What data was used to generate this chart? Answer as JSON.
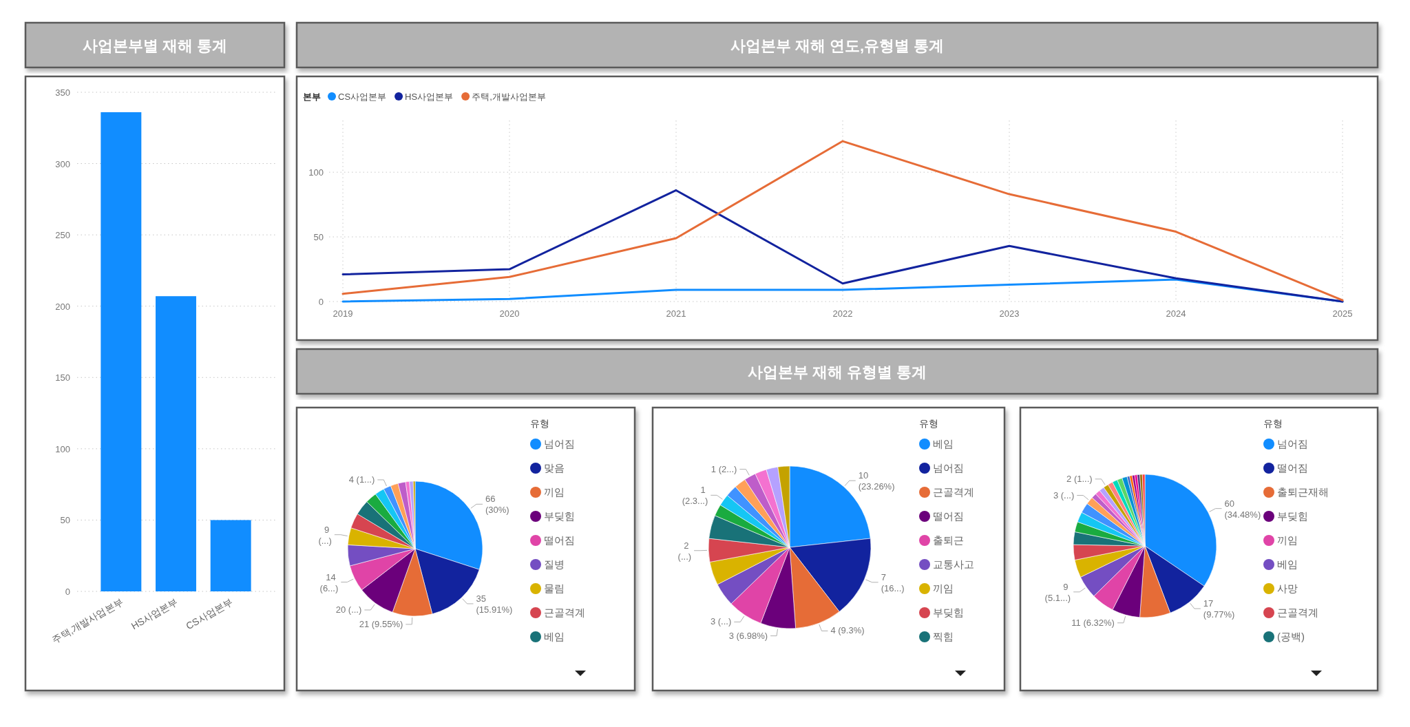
{
  "chart_data": [
    {
      "type": "bar",
      "title": "사업본부별 재해 통계",
      "categories": [
        "주택,개발사업본부",
        "HS사업본부",
        "CS사업본부"
      ],
      "values": [
        336,
        207,
        50
      ],
      "color": "#118dff",
      "ylim": [
        0,
        350
      ],
      "yticks": [
        0,
        50,
        100,
        150,
        200,
        250,
        300,
        350
      ],
      "grid": "y"
    },
    {
      "type": "line",
      "title": "사업본부 재해 연도,유형별 통계",
      "x": [
        2019,
        2020,
        2021,
        2022,
        2023,
        2024,
        2025
      ],
      "series": [
        {
          "name": "CS사업본부",
          "color": "#118dff",
          "values": [
            0,
            2,
            9,
            9,
            13,
            17,
            0
          ]
        },
        {
          "name": "HS사업본부",
          "color": "#12239e",
          "values": [
            21,
            25,
            86,
            14,
            43,
            18,
            0
          ]
        },
        {
          "name": "주택,개발사업본부",
          "color": "#e66c37",
          "values": [
            6,
            19,
            49,
            124,
            83,
            54,
            1
          ]
        }
      ],
      "legend_title": "본부",
      "legend": "top left",
      "xlim": [
        2019,
        2025
      ],
      "xticks": [
        2019,
        2020,
        2021,
        2022,
        2023,
        2024,
        2025
      ],
      "ylim": [
        0,
        140
      ],
      "yticks": [
        0,
        50,
        100
      ],
      "grid": true
    },
    {
      "type": "other",
      "title": "사업본부 재해 유형별 통계"
    },
    {
      "type": "pie",
      "legend_title": "유형",
      "legend": "right",
      "categories": [
        "넘어짐",
        "맞음",
        "끼임",
        "부딪힘",
        "떨어짐",
        "질병",
        "물림",
        "근골격계",
        "베임",
        null,
        null,
        null,
        null,
        null,
        null,
        null,
        null
      ],
      "values": [
        66,
        35,
        21,
        20,
        14,
        11,
        9,
        8,
        8,
        6,
        5,
        4,
        4,
        4,
        2,
        2,
        1
      ],
      "colors": [
        "#118dff",
        "#12239e",
        "#e66c37",
        "#6b007b",
        "#e044a7",
        "#744ec2",
        "#d9b300",
        "#d64550",
        "#197278",
        "#1aab40",
        "#15c6f4",
        "#4092ff",
        "#ffa058",
        "#be5dc9",
        "#f472d0",
        "#b5a1ff",
        "#c4a200"
      ],
      "value_labels": [
        "66 (30%)",
        "35 (15.91%)",
        "21 (9.55%)",
        "20 (...)",
        "14 (6...)",
        null,
        "9 (...)",
        null,
        null,
        null,
        null,
        "4 (1...)",
        null,
        null,
        null,
        null,
        null
      ]
    },
    {
      "type": "pie",
      "legend_title": "유형",
      "legend": "right",
      "categories": [
        "베임",
        "넘어짐",
        "근골격계",
        "떨어짐",
        "출퇴근",
        "교통사고",
        "끼임",
        "부딪힘",
        "찍힘",
        null,
        null,
        null,
        null,
        null,
        null,
        null,
        null
      ],
      "values": [
        10,
        7,
        4,
        3,
        3,
        2,
        2,
        2,
        2,
        1,
        1,
        1,
        1,
        1,
        1,
        1,
        1
      ],
      "colors": [
        "#118dff",
        "#12239e",
        "#e66c37",
        "#6b007b",
        "#e044a7",
        "#744ec2",
        "#d9b300",
        "#d64550",
        "#197278",
        "#1aab40",
        "#15c6f4",
        "#4092ff",
        "#ffa058",
        "#be5dc9",
        "#f472d0",
        "#b5a1ff",
        "#c4a200"
      ],
      "value_labels": [
        "10 (23.26%)",
        "7 (16...)",
        "4 (9.3%)",
        "3 (6.98%)",
        "3 (...)",
        null,
        null,
        "2 (...)",
        null,
        null,
        "1 (2.3...)",
        null,
        null,
        "1 (2...)",
        null,
        null,
        null
      ]
    },
    {
      "type": "pie",
      "legend_title": "유형",
      "legend": "right",
      "categories": [
        "넘어짐",
        "떨어짐",
        "출퇴근재해",
        "부딪힘",
        "끼임",
        "베임",
        "사망",
        "근골격계",
        "(공백)",
        null,
        null,
        null,
        null,
        null,
        null,
        null,
        null,
        null,
        null,
        null,
        null,
        null,
        null,
        null,
        null,
        null,
        null,
        null
      ],
      "values": [
        60,
        17,
        12,
        11,
        9,
        9,
        7,
        6,
        5,
        4,
        4,
        4,
        3,
        2,
        2,
        2,
        2,
        2,
        2,
        2,
        2,
        1,
        1,
        1,
        1,
        1,
        1,
        1
      ],
      "colors": [
        "#118dff",
        "#12239e",
        "#e66c37",
        "#6b007b",
        "#e044a7",
        "#744ec2",
        "#d9b300",
        "#d64550",
        "#197278",
        "#1aab40",
        "#15c6f4",
        "#4092ff",
        "#ffa058",
        "#be5dc9",
        "#f472d0",
        "#b5a1ff",
        "#c4a200",
        "#ff8080",
        "#00dbbc",
        "#5bd667",
        "#0091d5",
        "#4668c5",
        "#ff6300",
        "#99008a",
        "#ec008c",
        "#533285",
        "#99700a",
        "#ff4141"
      ],
      "value_labels": [
        "60 (34.48%)",
        "17 (9.77%)",
        null,
        "11 (6.32%)",
        null,
        "9 (5.1...)",
        null,
        null,
        null,
        null,
        null,
        null,
        "3 (...)",
        null,
        null,
        null,
        "2 (1...)",
        null,
        null,
        null,
        null,
        null,
        null,
        null,
        null,
        null,
        null,
        null
      ]
    }
  ]
}
